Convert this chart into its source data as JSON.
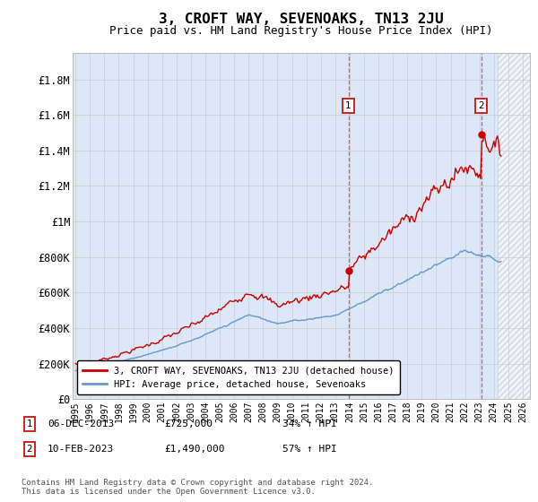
{
  "title": "3, CROFT WAY, SEVENOAKS, TN13 2JU",
  "subtitle": "Price paid vs. HM Land Registry's House Price Index (HPI)",
  "ylabel_ticks": [
    "£0",
    "£200K",
    "£400K",
    "£600K",
    "£800K",
    "£1M",
    "£1.2M",
    "£1.4M",
    "£1.6M",
    "£1.8M"
  ],
  "ytick_values": [
    0,
    200000,
    400000,
    600000,
    800000,
    1000000,
    1200000,
    1400000,
    1600000,
    1800000
  ],
  "ylim": [
    0,
    1950000
  ],
  "xlim_start": 1994.8,
  "xlim_end": 2026.5,
  "xtick_years": [
    1995,
    1996,
    1997,
    1998,
    1999,
    2000,
    2001,
    2002,
    2003,
    2004,
    2005,
    2006,
    2007,
    2008,
    2009,
    2010,
    2011,
    2012,
    2013,
    2014,
    2015,
    2016,
    2017,
    2018,
    2019,
    2020,
    2021,
    2022,
    2023,
    2024,
    2025,
    2026
  ],
  "grid_color": "#cccccc",
  "bg_color": "#ffffff",
  "plot_bg_color": "#dce8f8",
  "hatch_region_start": 2024.25,
  "hatch_region_end": 2026.8,
  "marker1_x": 2013.92,
  "marker1_y": 725000,
  "marker2_x": 2023.12,
  "marker2_y": 1490000,
  "line1_color": "#cc0000",
  "line2_color": "#6699cc",
  "line1_label": "3, CROFT WAY, SEVENOAKS, TN13 2JU (detached house)",
  "line2_label": "HPI: Average price, detached house, Sevenoaks",
  "marker1_date": "06-DEC-2013",
  "marker1_price": "£725,000",
  "marker1_hpi": "34% ↑ HPI",
  "marker2_date": "10-FEB-2023",
  "marker2_price": "£1,490,000",
  "marker2_hpi": "57% ↑ HPI",
  "footer": "Contains HM Land Registry data © Crown copyright and database right 2024.\nThis data is licensed under the Open Government Licence v3.0."
}
